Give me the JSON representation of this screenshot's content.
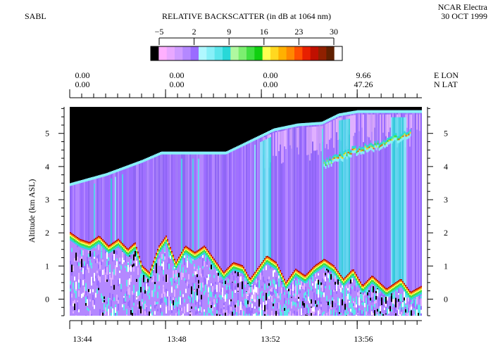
{
  "header": {
    "left_label": "SABL",
    "title": "RELATIVE BACKSCATTER (in dB at 1064 nm)",
    "right_line1": "NCAR Electra",
    "right_line2": "30 OCT 1999"
  },
  "colorbar": {
    "ticks": [
      "−5",
      "2",
      "9",
      "16",
      "23",
      "30"
    ],
    "tick_values": [
      -5,
      2,
      9,
      16,
      23,
      30
    ],
    "range": [
      -8,
      30
    ],
    "colors": [
      "#000000",
      "#ffb0ff",
      "#e8a8ff",
      "#cf9cff",
      "#b488ff",
      "#9a6cff",
      "#b0f8ff",
      "#88f0f8",
      "#5ce6ec",
      "#28d8d8",
      "#b0f8a0",
      "#7cee70",
      "#40e040",
      "#10d010",
      "#ffff50",
      "#ffd820",
      "#ffb000",
      "#ff8800",
      "#ff5000",
      "#e82000",
      "#c01000",
      "#902000",
      "#602000",
      "#ffffff"
    ]
  },
  "chart_data": {
    "type": "heatmap",
    "title": "RELATIVE BACKSCATTER (in dB at 1064 nm)",
    "ylabel": "Altitude (km ASL)",
    "xlabel": "",
    "ylim": [
      -0.5,
      5.8
    ],
    "y_ticks": [
      0,
      1,
      2,
      3,
      4,
      5
    ],
    "y_tick_labels": [
      "0",
      "1",
      "2",
      "3",
      "4",
      "5"
    ],
    "x_ticks": [
      "13:44",
      "13:48",
      "13:52",
      "13:56"
    ],
    "x_tick_minutes": [
      0,
      4,
      8,
      12
    ],
    "x_range_minutes": [
      0,
      14.7
    ],
    "top_axis": {
      "lon_label": "E LON",
      "lat_label": "N LAT",
      "lon": [
        "0.00",
        "0.00",
        "0.00",
        "9.66"
      ],
      "lat": [
        "0.00",
        "0.00",
        "0.00",
        "47.26"
      ]
    },
    "aircraft_altitude_km": [
      [
        0,
        3.5
      ],
      [
        1.5,
        3.8
      ],
      [
        3,
        4.2
      ],
      [
        3.8,
        4.45
      ],
      [
        6.5,
        4.45
      ],
      [
        7.5,
        4.8
      ],
      [
        8.5,
        5.15
      ],
      [
        9.5,
        5.3
      ],
      [
        10.5,
        5.35
      ],
      [
        11.2,
        5.6
      ],
      [
        12,
        5.7
      ],
      [
        14.7,
        5.7
      ]
    ],
    "boundary_layer_top_km": [
      [
        0,
        2.0
      ],
      [
        0.4,
        1.8
      ],
      [
        0.8,
        1.7
      ],
      [
        1.2,
        1.9
      ],
      [
        1.6,
        1.6
      ],
      [
        2.0,
        1.8
      ],
      [
        2.4,
        1.5
      ],
      [
        2.7,
        1.7
      ],
      [
        3.0,
        1.0
      ],
      [
        3.3,
        0.8
      ],
      [
        3.7,
        1.6
      ],
      [
        4.0,
        1.9
      ],
      [
        4.4,
        1.1
      ],
      [
        4.8,
        1.6
      ],
      [
        5.2,
        1.4
      ],
      [
        5.6,
        1.6
      ],
      [
        6.0,
        1.2
      ],
      [
        6.4,
        0.8
      ],
      [
        6.8,
        1.1
      ],
      [
        7.2,
        1.0
      ],
      [
        7.5,
        0.6
      ],
      [
        7.8,
        0.9
      ],
      [
        8.2,
        1.3
      ],
      [
        8.6,
        1.1
      ],
      [
        9.0,
        0.5
      ],
      [
        9.4,
        0.9
      ],
      [
        9.8,
        0.7
      ],
      [
        10.2,
        1.0
      ],
      [
        10.6,
        1.2
      ],
      [
        11.0,
        1.0
      ],
      [
        11.4,
        0.6
      ],
      [
        11.8,
        0.9
      ],
      [
        12.2,
        0.4
      ],
      [
        12.6,
        0.7
      ],
      [
        13.2,
        0.3
      ],
      [
        13.8,
        0.6
      ],
      [
        14.2,
        0.2
      ],
      [
        14.7,
        0.4
      ]
    ],
    "elevated_aerosol_layer_km": [
      [
        10.6,
        4.1
      ],
      [
        11.2,
        4.3
      ],
      [
        11.8,
        4.5
      ],
      [
        12.4,
        4.6
      ],
      [
        13.0,
        4.7
      ],
      [
        13.6,
        4.9
      ],
      [
        14.2,
        5.0
      ]
    ]
  }
}
